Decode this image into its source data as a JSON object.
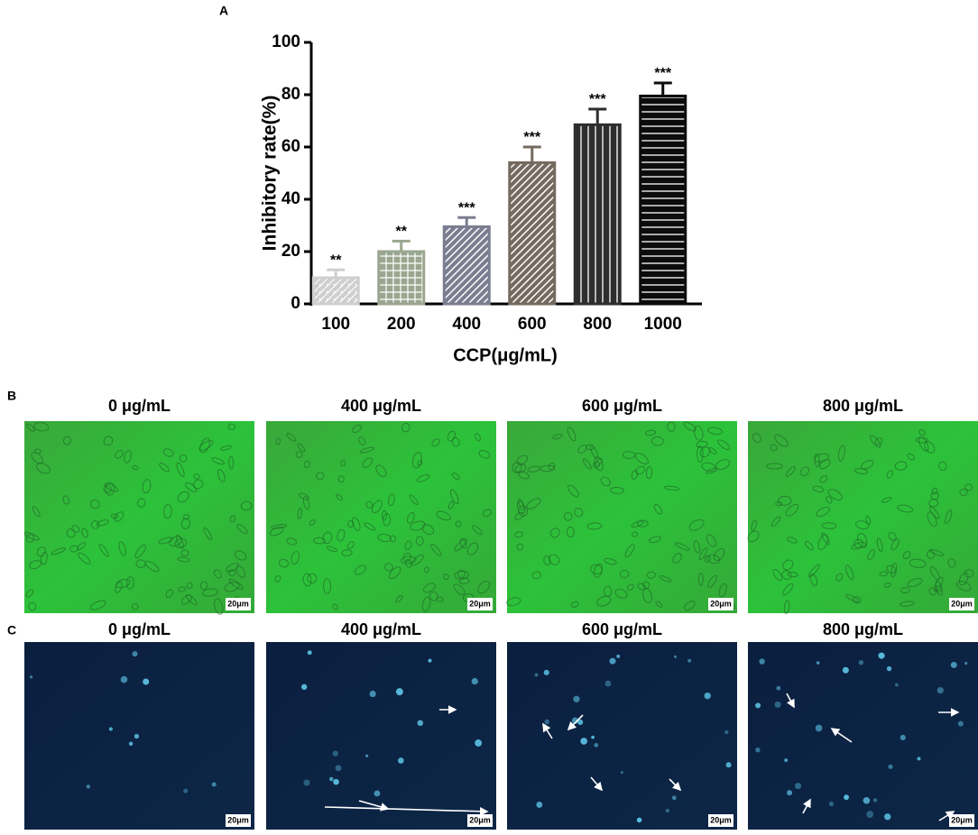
{
  "chart_data": {
    "type": "bar",
    "y_label": "Inhibitory rate(%)",
    "x_label": "CCP(μg/mL)",
    "categories": [
      "100",
      "200",
      "400",
      "600",
      "800",
      "1000"
    ],
    "values": [
      10,
      20,
      29.5,
      54,
      68.5,
      79.5
    ],
    "errors": [
      3,
      4,
      3.5,
      6,
      6,
      5
    ],
    "significance": [
      "**",
      "**",
      "***",
      "***",
      "***",
      "***"
    ],
    "colors": [
      "#cfcfcf",
      "#9aa68f",
      "#7b7d90",
      "#746a5f",
      "#2e2e2e",
      "#0c0c0c"
    ],
    "patterns": [
      "dots",
      "grid",
      "diag",
      "diag",
      "vlines",
      "hlines"
    ],
    "ylim": [
      0,
      100
    ],
    "yticks": [
      0,
      20,
      40,
      60,
      80,
      100
    ]
  },
  "figure": {
    "panel_labels": [
      "A",
      "B",
      "C"
    ],
    "brightfield": {
      "titles": [
        "0 μg/mL",
        "400 μg/mL",
        "600 μg/mL",
        "800 μg/mL"
      ],
      "scale": "20μm"
    },
    "fluorescence": {
      "titles": [
        "0 μg/mL",
        "400 μg/mL",
        "600 μg/mL",
        "800 μg/mL"
      ],
      "scale": "20μm"
    }
  }
}
